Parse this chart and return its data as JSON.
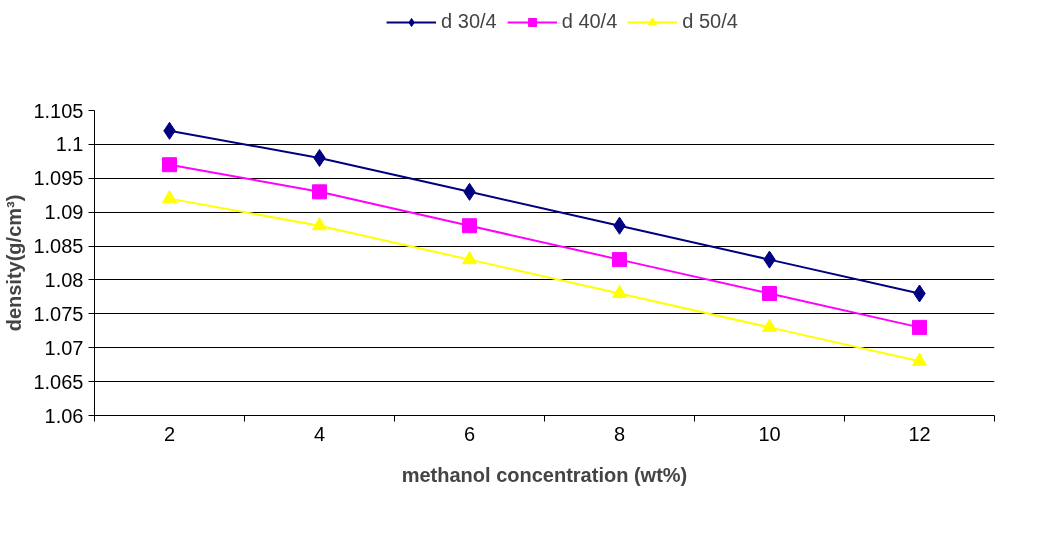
{
  "chart_data": {
    "type": "line",
    "xlabel": "methanol concentration (wt%)",
    "ylabel": "density(g/cm³)",
    "categories": [
      "2",
      "4",
      "6",
      "8",
      "10",
      "12"
    ],
    "series": [
      {
        "name": "d 30/4",
        "color": "#000080",
        "marker": "diamond",
        "values": [
          1.102,
          1.098,
          1.093,
          1.088,
          1.083,
          1.078
        ]
      },
      {
        "name": "d 40/4",
        "color": "#ff00ff",
        "marker": "square",
        "values": [
          1.097,
          1.093,
          1.088,
          1.083,
          1.078,
          1.073
        ]
      },
      {
        "name": "d 50/4",
        "color": "#ffff00",
        "marker": "triangle",
        "values": [
          1.092,
          1.088,
          1.083,
          1.078,
          1.073,
          1.068
        ]
      }
    ],
    "ylim": [
      1.06,
      1.105
    ],
    "yticks": [
      1.06,
      1.065,
      1.07,
      1.075,
      1.08,
      1.085,
      1.09,
      1.095,
      1.1,
      1.105
    ],
    "grid": "y",
    "legend": "top",
    "line_style": "solid"
  }
}
